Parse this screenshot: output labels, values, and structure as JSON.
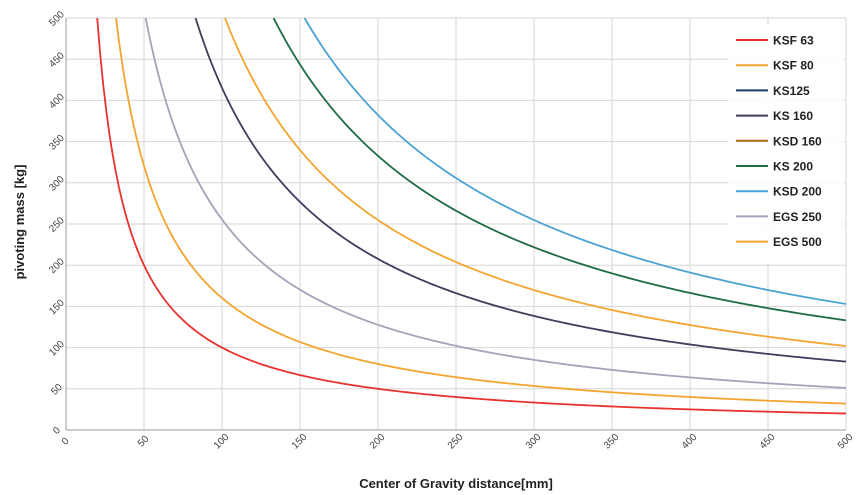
{
  "chart_data": {
    "type": "line",
    "title": "",
    "xlabel": "Center of Gravity distance[mm]",
    "ylabel": "pivoting mass [kg]",
    "xlim": [
      0,
      500
    ],
    "ylim": [
      0,
      500
    ],
    "xticks": [
      "0",
      "50",
      "100",
      "150",
      "200",
      "250",
      "300",
      "350",
      "400",
      "450",
      "500"
    ],
    "yticks": [
      "0",
      "50",
      "100",
      "150",
      "200",
      "250",
      "300",
      "350",
      "400",
      "450",
      "500"
    ],
    "grid": true,
    "legend_position": "top-right",
    "series": [
      {
        "name": "KSF 63",
        "color": "#e8322e",
        "x": [
          20,
          25,
          50,
          100,
          150,
          200,
          250,
          300,
          350,
          400,
          450,
          500
        ],
        "y": [
          500,
          400,
          200,
          100,
          67,
          50,
          40,
          33,
          29,
          25,
          22,
          20
        ]
      },
      {
        "name": "KSF 80",
        "color": "#f3a530",
        "x": [
          35,
          50,
          100,
          150,
          200,
          250,
          300,
          350,
          400,
          450,
          500
        ],
        "y": [
          457,
          320,
          160,
          107,
          80,
          64,
          53,
          46,
          40,
          36,
          32
        ]
      },
      {
        "name": "KS125",
        "color": "#1f3a6e",
        "x": [],
        "y": []
      },
      {
        "name": "KS 160",
        "color": "#3e3e5c",
        "x": [
          83,
          100,
          150,
          200,
          250,
          300,
          350,
          400,
          450,
          500
        ],
        "y": [
          500,
          415,
          277,
          208,
          166,
          138,
          119,
          104,
          92,
          83
        ]
      },
      {
        "name": "KSD 160",
        "color": "#b0691f",
        "x": [],
        "y": []
      },
      {
        "name": "KS 200",
        "color": "#1f6b45",
        "x": [
          133,
          150,
          200,
          250,
          300,
          350,
          400,
          450,
          500
        ],
        "y": [
          500,
          444,
          333,
          266,
          222,
          190,
          166,
          148,
          133
        ]
      },
      {
        "name": "KSD 200",
        "color": "#4aa3d3",
        "x": [
          153,
          200,
          250,
          300,
          350,
          400,
          450,
          500
        ],
        "y": [
          500,
          382,
          306,
          255,
          218,
          191,
          170,
          153
        ]
      },
      {
        "name": "EGS 250",
        "color": "#a4a3ba",
        "x": [
          51,
          75,
          100,
          150,
          200,
          250,
          300,
          350,
          400,
          450,
          500
        ],
        "y": [
          500,
          340,
          255,
          170,
          128,
          102,
          85,
          73,
          64,
          57,
          51
        ]
      },
      {
        "name": "EGS 500",
        "color": "#f3a530",
        "x": [
          101,
          150,
          200,
          250,
          300,
          350,
          400,
          450,
          500
        ],
        "y": [
          500,
          340,
          255,
          204,
          170,
          146,
          128,
          113,
          102
        ]
      }
    ]
  }
}
